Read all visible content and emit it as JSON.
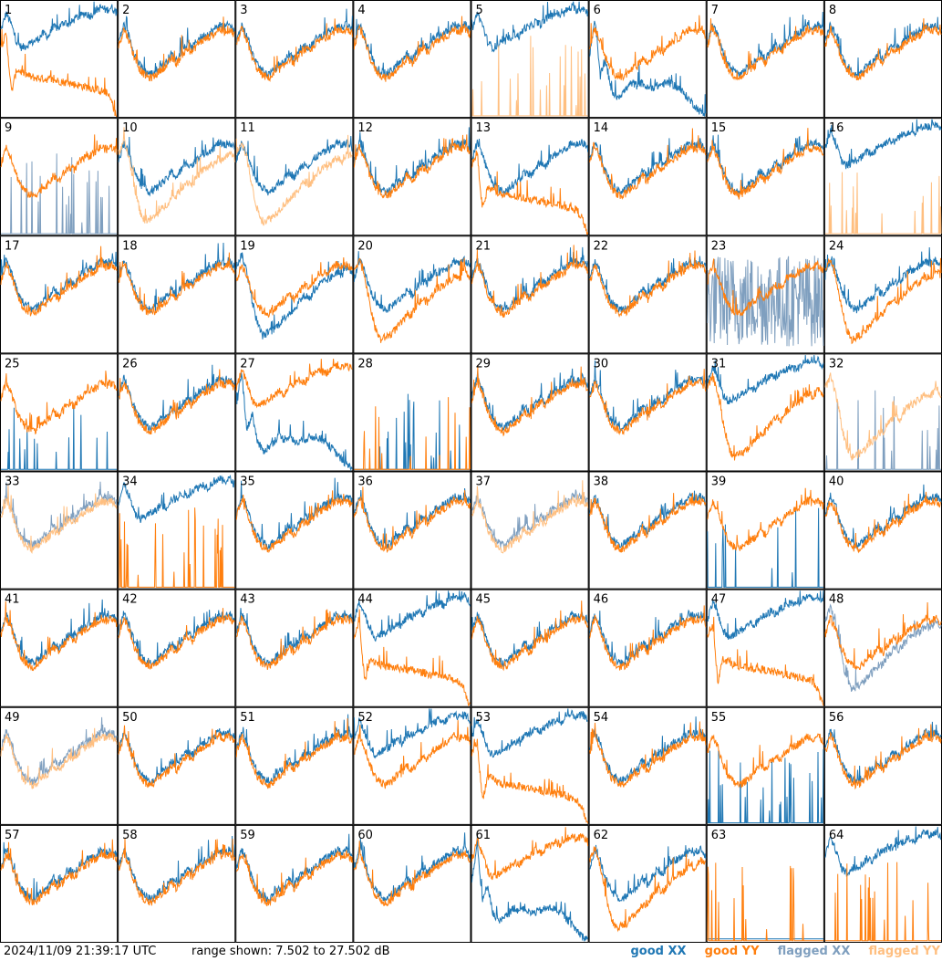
{
  "footer": {
    "timestamp": "2024/11/09 21:39:17 UTC",
    "range_text": "range shown: 7.502 to 27.502 dB"
  },
  "legend": {
    "good_xx": "good XX",
    "good_yy": "good YY",
    "flagged_xx": "flagged XX",
    "flagged_yy": "flagged YY"
  },
  "colors": {
    "good_xx": "#1f77b4",
    "good_yy": "#ff7f0e",
    "flagged_xx": "#7f9fbf",
    "flagged_yy": "#ffbf80"
  },
  "chart_data": {
    "type": "line",
    "grid": "8x8 small multiples",
    "ylim": [
      7.502,
      27.502
    ],
    "yunit": "dB",
    "panel_labels": [
      "1",
      "2",
      "3",
      "4",
      "5",
      "6",
      "7",
      "8",
      "9",
      "10",
      "11",
      "12",
      "13",
      "14",
      "15",
      "16",
      "17",
      "18",
      "19",
      "20",
      "21",
      "22",
      "23",
      "24",
      "25",
      "26",
      "27",
      "28",
      "29",
      "30",
      "31",
      "32",
      "33",
      "34",
      "35",
      "36",
      "37",
      "38",
      "39",
      "40",
      "41",
      "42",
      "43",
      "44",
      "45",
      "46",
      "47",
      "48",
      "49",
      "50",
      "51",
      "52",
      "53",
      "54",
      "55",
      "56",
      "57",
      "58",
      "59",
      "60",
      "61",
      "62",
      "63",
      "64"
    ],
    "series": [
      {
        "name": "good XX",
        "flagged_panels": [
          9,
          23,
          32,
          33,
          37,
          48,
          49
        ]
      },
      {
        "name": "good YY",
        "flagged_panels": [
          5,
          10,
          11,
          16,
          32,
          33,
          37,
          49
        ]
      },
      {
        "name": "flagged XX"
      },
      {
        "name": "flagged YY"
      }
    ],
    "profiles": {
      "standard": [
        20,
        23,
        21,
        18,
        16,
        15,
        14.5,
        15,
        16,
        16.5,
        18,
        17,
        18.5,
        19.5,
        19,
        20.5,
        21,
        21.5,
        22,
        23,
        22.5,
        23,
        22
      ],
      "dip": [
        22,
        24,
        21,
        16,
        12,
        10,
        10.5,
        11,
        12,
        13,
        14,
        14.5,
        16,
        17,
        16.5,
        18,
        19,
        19.5,
        20,
        21,
        20.5,
        22,
        21
      ],
      "dead": [
        20,
        22,
        12,
        16,
        15.5,
        15,
        14.6,
        14.5,
        14.4,
        14.3,
        14.1,
        14,
        13.8,
        13.6,
        13.4,
        13.2,
        13,
        12.8,
        12.6,
        12.3,
        12,
        10.5,
        7.6
      ],
      "high": [
        22,
        25,
        23,
        20,
        19,
        19.5,
        20,
        20.5,
        21.5,
        21,
        22.5,
        22.5,
        23.5,
        23,
        24,
        24.5,
        25,
        24.5,
        25.5,
        26,
        25.5,
        26,
        25
      ],
      "bottom": [
        7.6,
        7.6,
        7.6,
        7.6,
        7.6,
        7.6,
        7.6,
        7.6,
        7.6,
        7.6,
        7.6,
        7.6,
        7.6,
        7.6,
        7.6,
        7.6,
        7.6,
        7.6,
        7.6,
        7.6,
        7.6,
        7.6,
        7.6
      ],
      "collapsed": [
        18,
        24,
        14,
        17,
        12,
        10.5,
        11,
        12,
        13,
        12.5,
        13,
        12,
        12.2,
        12.5,
        12.8,
        13,
        12.6,
        12,
        11,
        10,
        9,
        8,
        7.6
      ]
    },
    "panels": [
      {
        "xx": "high",
        "yy": "dead"
      },
      {
        "xx": "standard",
        "yy": "standard"
      },
      {
        "xx": "standard",
        "yy": "standard"
      },
      {
        "xx": "standard",
        "yy": "standard"
      },
      {
        "xx": "high",
        "yy": "spikes"
      },
      {
        "xx": "collapsed",
        "yy": "standard"
      },
      {
        "xx": "standard",
        "yy": "standard"
      },
      {
        "xx": "standard",
        "yy": "standard"
      },
      {
        "xx": "spikes",
        "yy": "standard"
      },
      {
        "xx": "standard",
        "yy": "dip"
      },
      {
        "xx": "standard",
        "yy": "dip"
      },
      {
        "xx": "standard",
        "yy": "standard"
      },
      {
        "xx": "standard",
        "yy": "dead"
      },
      {
        "xx": "standard",
        "yy": "standard"
      },
      {
        "xx": "standard",
        "yy": "standard"
      },
      {
        "xx": "high",
        "yy": "spikes"
      },
      {
        "xx": "standard",
        "yy": "standard"
      },
      {
        "xx": "standard",
        "yy": "standard"
      },
      {
        "xx": "dip",
        "yy": "standard"
      },
      {
        "xx": "standard",
        "yy": "dip"
      },
      {
        "xx": "standard",
        "yy": "standard"
      },
      {
        "xx": "standard",
        "yy": "standard"
      },
      {
        "xx": "noise",
        "yy": "standard"
      },
      {
        "xx": "standard",
        "yy": "dip"
      },
      {
        "xx": "spikes",
        "yy": "standard"
      },
      {
        "xx": "standard",
        "yy": "standard"
      },
      {
        "xx": "collapsed",
        "yy": "high"
      },
      {
        "xx": "spikes",
        "yy": "spikes"
      },
      {
        "xx": "standard",
        "yy": "standard"
      },
      {
        "xx": "standard",
        "yy": "standard"
      },
      {
        "xx": "high",
        "yy": "dip"
      },
      {
        "xx": "spikes",
        "yy": "dip"
      },
      {
        "xx": "standard",
        "yy": "standard"
      },
      {
        "xx": "high",
        "yy": "spikes"
      },
      {
        "xx": "standard",
        "yy": "standard"
      },
      {
        "xx": "standard",
        "yy": "standard"
      },
      {
        "xx": "standard",
        "yy": "standard"
      },
      {
        "xx": "standard",
        "yy": "standard"
      },
      {
        "xx": "spikes",
        "yy": "standard"
      },
      {
        "xx": "standard",
        "yy": "standard"
      },
      {
        "xx": "standard",
        "yy": "standard"
      },
      {
        "xx": "standard",
        "yy": "standard"
      },
      {
        "xx": "standard",
        "yy": "standard"
      },
      {
        "xx": "high",
        "yy": "dead"
      },
      {
        "xx": "standard",
        "yy": "standard"
      },
      {
        "xx": "standard",
        "yy": "standard"
      },
      {
        "xx": "high",
        "yy": "dead"
      },
      {
        "xx": "dip",
        "yy": "standard"
      },
      {
        "xx": "standard",
        "yy": "standard"
      },
      {
        "xx": "standard",
        "yy": "standard"
      },
      {
        "xx": "standard",
        "yy": "standard"
      },
      {
        "xx": "high",
        "yy": "standard"
      },
      {
        "xx": "high",
        "yy": "dead"
      },
      {
        "xx": "standard",
        "yy": "standard"
      },
      {
        "xx": "spikes",
        "yy": "standard"
      },
      {
        "xx": "standard",
        "yy": "standard"
      },
      {
        "xx": "standard",
        "yy": "standard"
      },
      {
        "xx": "standard",
        "yy": "standard"
      },
      {
        "xx": "standard",
        "yy": "standard"
      },
      {
        "xx": "standard",
        "yy": "standard"
      },
      {
        "xx": "collapsed",
        "yy": "high"
      },
      {
        "xx": "standard",
        "yy": "dip"
      },
      {
        "xx": "bottom",
        "yy": "spikes"
      },
      {
        "xx": "high",
        "yy": "spikes"
      }
    ]
  }
}
